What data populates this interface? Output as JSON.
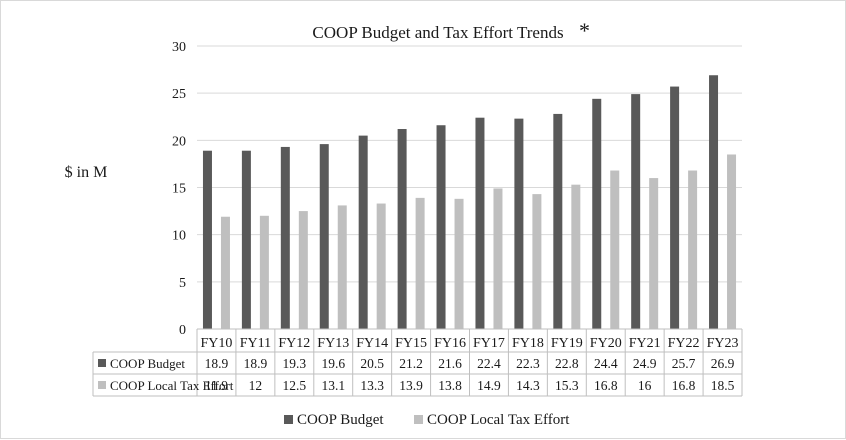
{
  "chart_data": {
    "type": "bar",
    "title": "COOP Budget and Tax Effort Trends",
    "title_mark": "*",
    "ylabel": "$ in M",
    "xlabel": "",
    "ylim": [
      0,
      30
    ],
    "yticks": [
      0,
      5,
      10,
      15,
      20,
      25,
      30
    ],
    "grid": true,
    "legend_position": "bottom",
    "data_table": true,
    "categories": [
      "FY10",
      "FY11",
      "FY12",
      "FY13",
      "FY14",
      "FY15",
      "FY16",
      "FY17",
      "FY18",
      "FY19",
      "FY20",
      "FY21",
      "FY22",
      "FY23"
    ],
    "series": [
      {
        "name": "COOP Budget",
        "color": "#595959",
        "values": [
          18.9,
          18.9,
          19.3,
          19.6,
          20.5,
          21.2,
          21.6,
          22.4,
          22.3,
          22.8,
          24.4,
          24.9,
          25.7,
          26.9
        ],
        "labels": [
          "18.9",
          "18.9",
          "19.3",
          "19.6",
          "20.5",
          "21.2",
          "21.6",
          "22.4",
          "22.3",
          "22.8",
          "24.4",
          "24.9",
          "25.7",
          "26.9"
        ]
      },
      {
        "name": "COOP Local Tax Effort",
        "color": "#bfbfbf",
        "values": [
          11.9,
          12,
          12.5,
          13.1,
          13.3,
          13.9,
          13.8,
          14.9,
          14.3,
          15.3,
          16.8,
          16,
          16.8,
          18.5
        ],
        "labels": [
          "11.9",
          "12",
          "12.5",
          "13.1",
          "13.3",
          "13.9",
          "13.8",
          "14.9",
          "14.3",
          "15.3",
          "16.8",
          "16",
          "16.8",
          "18.5"
        ]
      }
    ],
    "gridline_color": "#d9d9d9",
    "axis_color": "#bfbfbf"
  }
}
